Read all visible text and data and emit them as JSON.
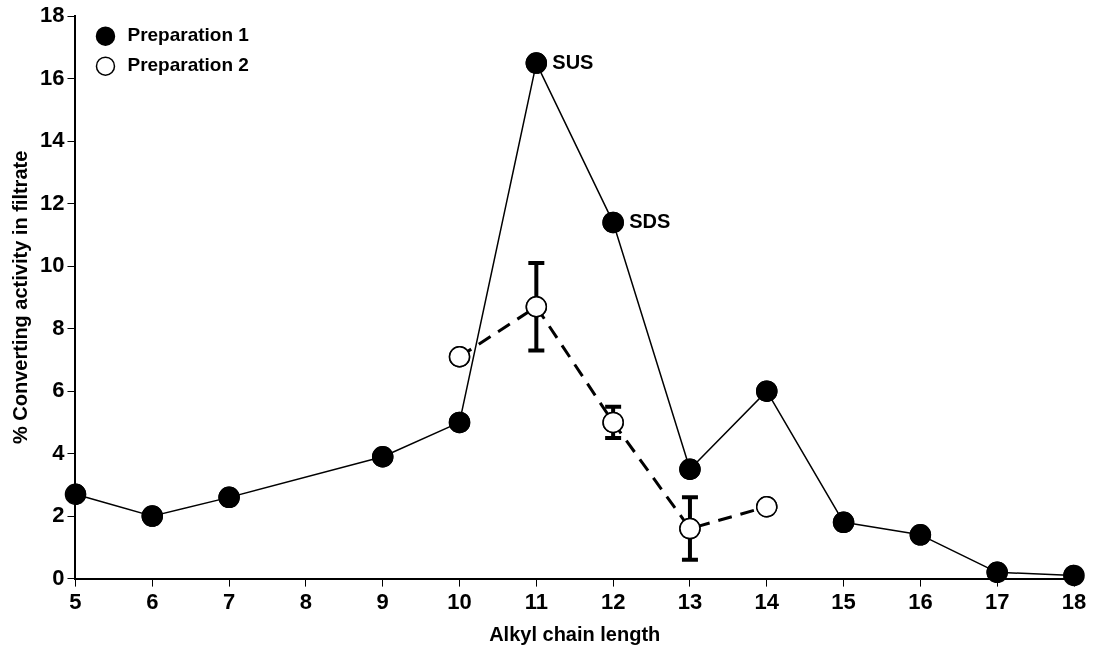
{
  "chart_data": {
    "type": "line",
    "xlabel": "Alkyl chain length",
    "ylabel": "% Converting activity in filtrate",
    "xlim": [
      5,
      18
    ],
    "xticks": [
      5,
      6,
      7,
      8,
      9,
      10,
      11,
      12,
      13,
      14,
      15,
      16,
      17,
      18
    ],
    "ylim": [
      0,
      18
    ],
    "yticks": [
      0,
      2,
      4,
      6,
      8,
      10,
      12,
      14,
      16,
      18
    ],
    "grid": false,
    "legend": "top left",
    "marker": "circle",
    "series": [
      {
        "name": "Preparation 1",
        "color": "#000000",
        "line_style": "solid",
        "x": [
          5,
          6,
          7,
          9,
          10,
          11,
          12,
          13,
          14,
          15,
          16,
          17,
          18
        ],
        "values": [
          2.7,
          2.0,
          2.6,
          3.9,
          5.0,
          16.5,
          11.4,
          3.5,
          6.0,
          1.8,
          1.4,
          0.2,
          0.1
        ]
      },
      {
        "name": "Preparation 2",
        "color": "#ffffff",
        "line_style": "dashed",
        "x": [
          10,
          11,
          12,
          13,
          14
        ],
        "values": [
          7.1,
          8.7,
          5.0,
          1.6,
          2.3
        ],
        "errors": [
          null,
          [
            7.3,
            10.1
          ],
          [
            4.5,
            5.5
          ],
          [
            0.6,
            2.6
          ],
          null
        ]
      }
    ],
    "annotations": [
      {
        "text": "SUS",
        "x": 11,
        "y": 16.5
      },
      {
        "text": "SDS",
        "x": 12,
        "y": 11.4
      }
    ]
  }
}
